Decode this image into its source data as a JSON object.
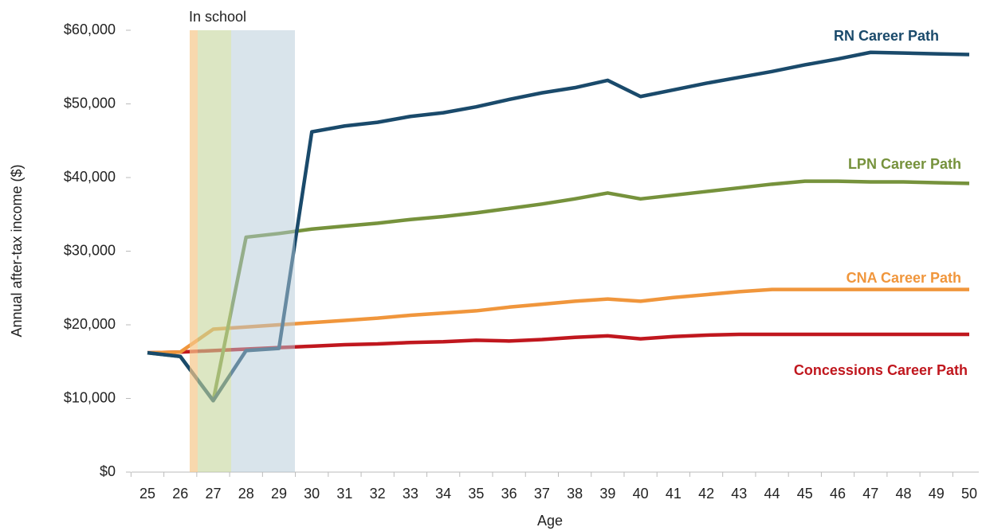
{
  "chart_data": {
    "type": "line",
    "xlabel": "Age",
    "ylabel": "Annual after-tax income ($)",
    "annotation": "In school",
    "categories": [
      "25",
      "26",
      "27",
      "28",
      "29",
      "30",
      "31",
      "32",
      "33",
      "34",
      "35",
      "36",
      "37",
      "38",
      "39",
      "40",
      "41",
      "42",
      "43",
      "44",
      "45",
      "46",
      "47",
      "48",
      "49",
      "50"
    ],
    "ylim": [
      0,
      60000
    ],
    "yticks": [
      {
        "value": 0,
        "label": "$0"
      },
      {
        "value": 10000,
        "label": "$10,000"
      },
      {
        "value": 20000,
        "label": "$20,000"
      },
      {
        "value": 30000,
        "label": "$30,000"
      },
      {
        "value": 40000,
        "label": "$40,000"
      },
      {
        "value": 50000,
        "label": "$50,000"
      },
      {
        "value": 60000,
        "label": "$60,000"
      }
    ],
    "grid": false,
    "series": [
      {
        "name": "Concessions Career Path",
        "color": "#c0171e",
        "values": [
          16200,
          16300,
          16500,
          16700,
          16900,
          17100,
          17300,
          17400,
          17600,
          17700,
          17900,
          17800,
          18000,
          18300,
          18500,
          18100,
          18400,
          18600,
          18700,
          18700,
          18700,
          18700,
          18700,
          18700,
          18700,
          18700
        ]
      },
      {
        "name": "CNA Career Path",
        "color": "#f0963c",
        "values": [
          16200,
          16300,
          19400,
          19700,
          20000,
          20300,
          20600,
          20900,
          21300,
          21600,
          21900,
          22400,
          22800,
          23200,
          23500,
          23200,
          23700,
          24100,
          24500,
          24800,
          24800,
          24800,
          24800,
          24800,
          24800,
          24800
        ]
      },
      {
        "name": "LPN Career Path",
        "color": "#76923c",
        "values": [
          16200,
          15700,
          9700,
          31900,
          32400,
          33000,
          33400,
          33800,
          34300,
          34700,
          35200,
          35800,
          36400,
          37100,
          37900,
          37100,
          37600,
          38100,
          38600,
          39100,
          39500,
          39500,
          39400,
          39400,
          39300,
          39200
        ]
      },
      {
        "name": "RN Career Path",
        "color": "#1a4a6b",
        "values": [
          16200,
          15700,
          9700,
          16500,
          16800,
          46200,
          47000,
          47500,
          48300,
          48800,
          49600,
          50600,
          51500,
          52200,
          53200,
          51000,
          51900,
          52800,
          53600,
          54400,
          55300,
          56100,
          57000,
          56900,
          56800,
          56700
        ]
      }
    ]
  }
}
